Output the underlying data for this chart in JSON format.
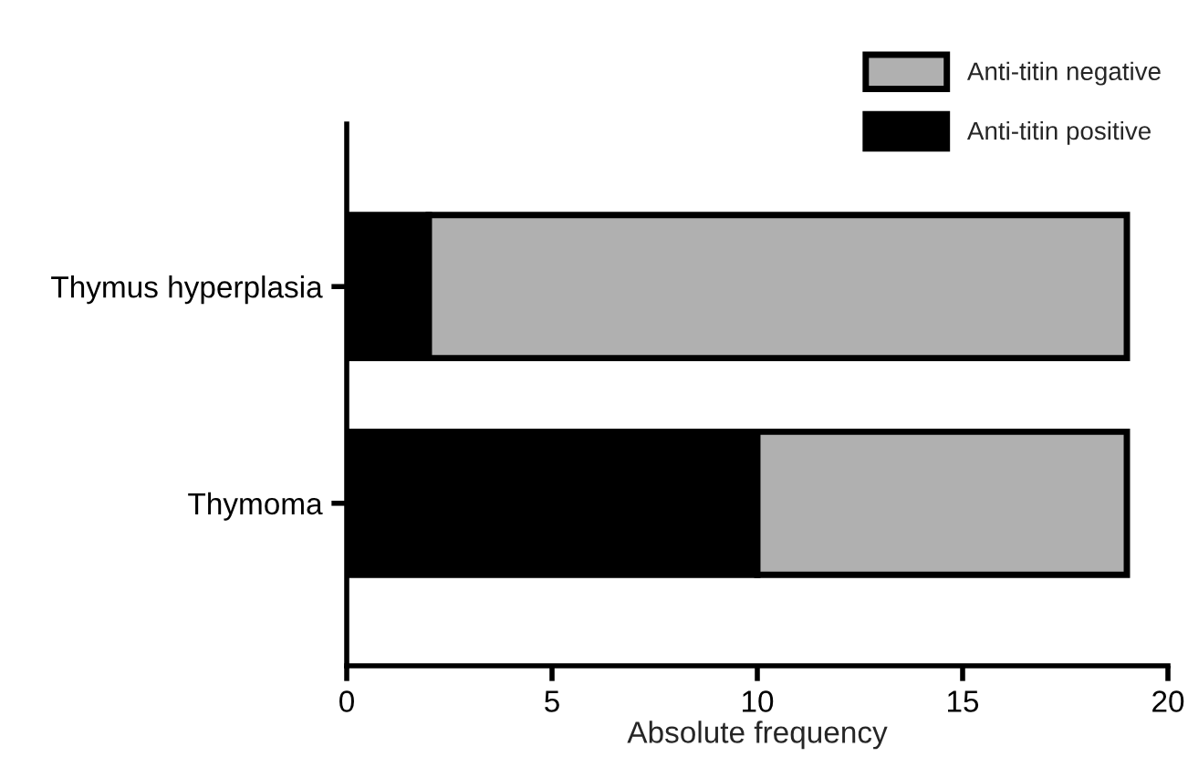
{
  "chart_data": {
    "type": "bar",
    "orientation": "horizontal",
    "stacked": true,
    "xlabel": "Absolute frequency",
    "categories": [
      "Thymus hyperplasia",
      "Thymoma"
    ],
    "series": [
      {
        "name": "Anti-titin positive",
        "color": "#000000",
        "values": [
          2,
          10
        ]
      },
      {
        "name": "Anti-titin negative",
        "color": "#b0b0b0",
        "values": [
          17,
          9
        ]
      }
    ],
    "xlim": [
      0,
      20
    ],
    "xticks": [
      0,
      5,
      10,
      15,
      20
    ],
    "grid": false,
    "legend": "top right"
  }
}
